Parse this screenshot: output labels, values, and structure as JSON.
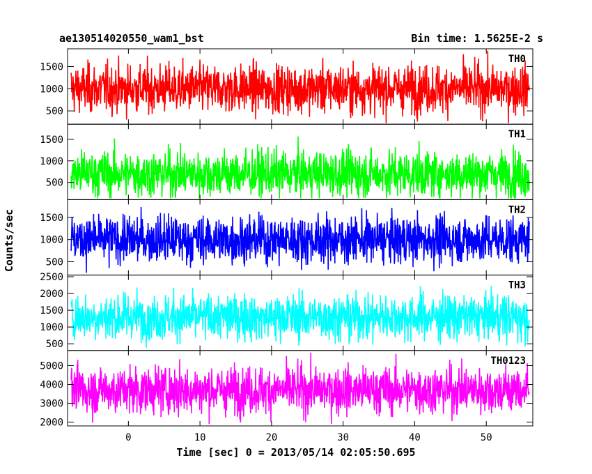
{
  "chart_data": {
    "type": "line",
    "title": "ae130514020550_wam1_bst",
    "subtitle": "Bin time: 1.5625E-2 s",
    "xlabel": "Time [sec] 0 = 2013/05/14 02:05:50.695",
    "ylabel": "Counts/sec",
    "xlim": [
      -8.5,
      56.5
    ],
    "x_data_range": [
      -8,
      56
    ],
    "x_ticks": [
      0,
      10,
      20,
      30,
      40,
      50
    ],
    "x_tick_labels": [
      "0",
      "10",
      "20",
      "30",
      "40",
      "50"
    ],
    "bin_time": 0.015625,
    "panels": [
      {
        "label": "TH0",
        "color": "#ff0000",
        "ylim": [
          200,
          1900
        ],
        "y_ticks": [
          500,
          1000,
          1500
        ],
        "y_tick_labels": [
          "500",
          "1000",
          "1500"
        ],
        "approx_mean": 1000,
        "approx_low": 220,
        "approx_high": 1900
      },
      {
        "label": "TH1",
        "color": "#00ff00",
        "ylim": [
          100,
          1850
        ],
        "y_ticks": [
          500,
          1000,
          1500
        ],
        "y_tick_labels": [
          "500",
          "1000",
          "1500"
        ],
        "approx_mean": 700,
        "approx_low": 130,
        "approx_high": 1800
      },
      {
        "label": "TH2",
        "color": "#0000ff",
        "ylim": [
          200,
          1900
        ],
        "y_ticks": [
          500,
          1000,
          1500
        ],
        "y_tick_labels": [
          "500",
          "1000",
          "1500"
        ],
        "approx_mean": 1000,
        "approx_low": 250,
        "approx_high": 1900
      },
      {
        "label": "TH3",
        "color": "#00ffff",
        "ylim": [
          300,
          2550
        ],
        "y_ticks": [
          500,
          1000,
          1500,
          2000,
          2500
        ],
        "y_tick_labels": [
          "500",
          "1000",
          "1500",
          "2000",
          "2500"
        ],
        "approx_mean": 1300,
        "approx_low": 380,
        "approx_high": 2500
      },
      {
        "label": "TH0123",
        "color": "#ff00ff",
        "ylim": [
          1800,
          5800
        ],
        "y_ticks": [
          2000,
          3000,
          4000,
          5000
        ],
        "y_tick_labels": [
          "2000",
          "3000",
          "4000",
          "5000"
        ],
        "approx_mean": 3700,
        "approx_low": 1900,
        "approx_high": 5800
      }
    ]
  }
}
